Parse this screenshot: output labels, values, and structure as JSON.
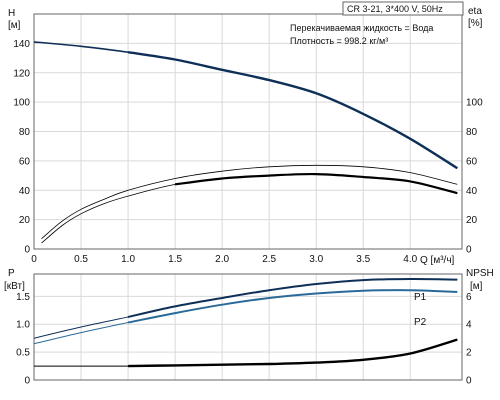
{
  "chart_data": {
    "type": "line",
    "model_label": "CR 3-21, 3*400 V, 50Hz",
    "info_lines": [
      "Перекачиваемая жидкость = Вода",
      "Плотность = 998.2 кг/м³"
    ],
    "x_axis": {
      "label": "Q [м³/ч]",
      "ticks": [
        "0",
        "0.5",
        "1.0",
        "1.5",
        "2.0",
        "2.5",
        "3.0",
        "3.5",
        "4.0"
      ],
      "range": [
        0,
        4.55
      ]
    },
    "top_panel": {
      "left_axis": {
        "label_line1": "H",
        "label_line2": "[м]",
        "ticks": [
          "0",
          "20",
          "40",
          "60",
          "80",
          "100",
          "120",
          "140"
        ],
        "range": [
          0,
          160
        ]
      },
      "right_axis": {
        "label_line1": "eta",
        "label_line2": "[%]",
        "ticks": [
          "0",
          "20",
          "40",
          "60",
          "80",
          "100"
        ],
        "range": [
          0,
          160
        ]
      },
      "grid": true,
      "series": [
        {
          "key": "head",
          "axis": "left",
          "x": [
            0,
            0.5,
            1.0,
            1.5,
            2.0,
            2.5,
            3.0,
            3.5,
            4.0,
            4.5
          ],
          "y": [
            141,
            138,
            134,
            129,
            122,
            115,
            106,
            92,
            75,
            55
          ]
        },
        {
          "key": "eta_upper",
          "axis": "right",
          "x": [
            0.08,
            0.3,
            0.5,
            0.75,
            1.0,
            1.5,
            2.0,
            2.5,
            3.0,
            3.5,
            4.0,
            4.5
          ],
          "y": [
            7,
            19,
            27,
            34,
            40,
            48,
            53,
            56,
            57,
            56,
            52,
            44
          ]
        },
        {
          "key": "eta_lower",
          "axis": "right",
          "x": [
            0.08,
            0.3,
            0.5,
            0.75,
            1.0,
            1.5,
            2.0,
            2.5,
            3.0,
            3.5,
            4.0,
            4.5
          ],
          "y": [
            4,
            16,
            24,
            31,
            36,
            44,
            48,
            50,
            51,
            49,
            46,
            38
          ]
        }
      ]
    },
    "bottom_panel": {
      "left_axis": {
        "label_line1": "P",
        "label_line2": "[кВт]",
        "ticks": [
          "0",
          "0.5",
          "1.0",
          "1.5"
        ],
        "range": [
          0,
          1.9
        ]
      },
      "right_axis": {
        "label_line1": "NPSH",
        "label_line2": "[м]",
        "ticks": [
          "0",
          "2",
          "4",
          "6"
        ],
        "range": [
          0,
          7.6
        ]
      },
      "grid": true,
      "series": [
        {
          "key": "p1",
          "label": "P1",
          "axis": "left",
          "x": [
            0,
            0.5,
            1.0,
            1.5,
            2.0,
            2.5,
            3.0,
            3.5,
            4.0,
            4.5
          ],
          "y": [
            0.75,
            0.95,
            1.13,
            1.32,
            1.47,
            1.61,
            1.72,
            1.79,
            1.81,
            1.8
          ]
        },
        {
          "key": "p2",
          "label": "P2",
          "axis": "left",
          "x": [
            0,
            0.5,
            1.0,
            1.5,
            2.0,
            2.5,
            3.0,
            3.5,
            4.0,
            4.5
          ],
          "y": [
            0.65,
            0.85,
            1.03,
            1.2,
            1.35,
            1.47,
            1.55,
            1.6,
            1.61,
            1.58
          ]
        },
        {
          "key": "npsh",
          "axis": "right",
          "x": [
            0,
            1.0,
            1.5,
            2.0,
            2.5,
            3.0,
            3.5,
            4.0,
            4.5
          ],
          "y": [
            1.0,
            1.0,
            1.05,
            1.1,
            1.15,
            1.25,
            1.45,
            1.9,
            2.9
          ]
        }
      ]
    }
  }
}
